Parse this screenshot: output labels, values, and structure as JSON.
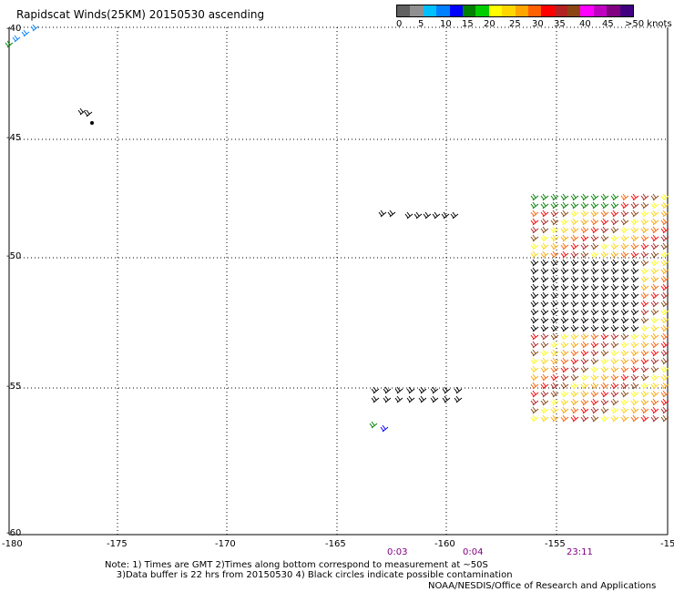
{
  "title": "Rapidscat Winds(25KM) 20150530 ascending",
  "colorbar": {
    "labels": [
      "0",
      "5",
      "10",
      "15",
      "20",
      "25",
      "30",
      "35",
      "40",
      "45",
      ">50 knots"
    ],
    "colors": [
      "#606060",
      "#909090",
      "#00bfff",
      "#0080ff",
      "#0000ff",
      "#008000",
      "#00cc00",
      "#ffff00",
      "#ffd700",
      "#ffa500",
      "#ff6000",
      "#ff0000",
      "#b22222",
      "#8b4513",
      "#ff00ff",
      "#c000c0",
      "#800080",
      "#400080"
    ]
  },
  "axes": {
    "lon_labels": [
      "-180",
      "-175",
      "-170",
      "-165",
      "-160",
      "-155",
      "-15"
    ],
    "lat_labels": [
      "-40",
      "-45",
      "-50",
      "-55",
      "-60"
    ]
  },
  "times": [
    "0:03",
    "0:04",
    "23:11"
  ],
  "notes": {
    "line1": "Note: 1) Times are GMT 2)Times along bottom correspond to measurement at ~50S",
    "line2": "3)Data buffer is 22 hrs from 20150530 4) Black circles indicate possible contamination"
  },
  "credit": "NOAA/NESDIS/Office of Research and Applications"
}
